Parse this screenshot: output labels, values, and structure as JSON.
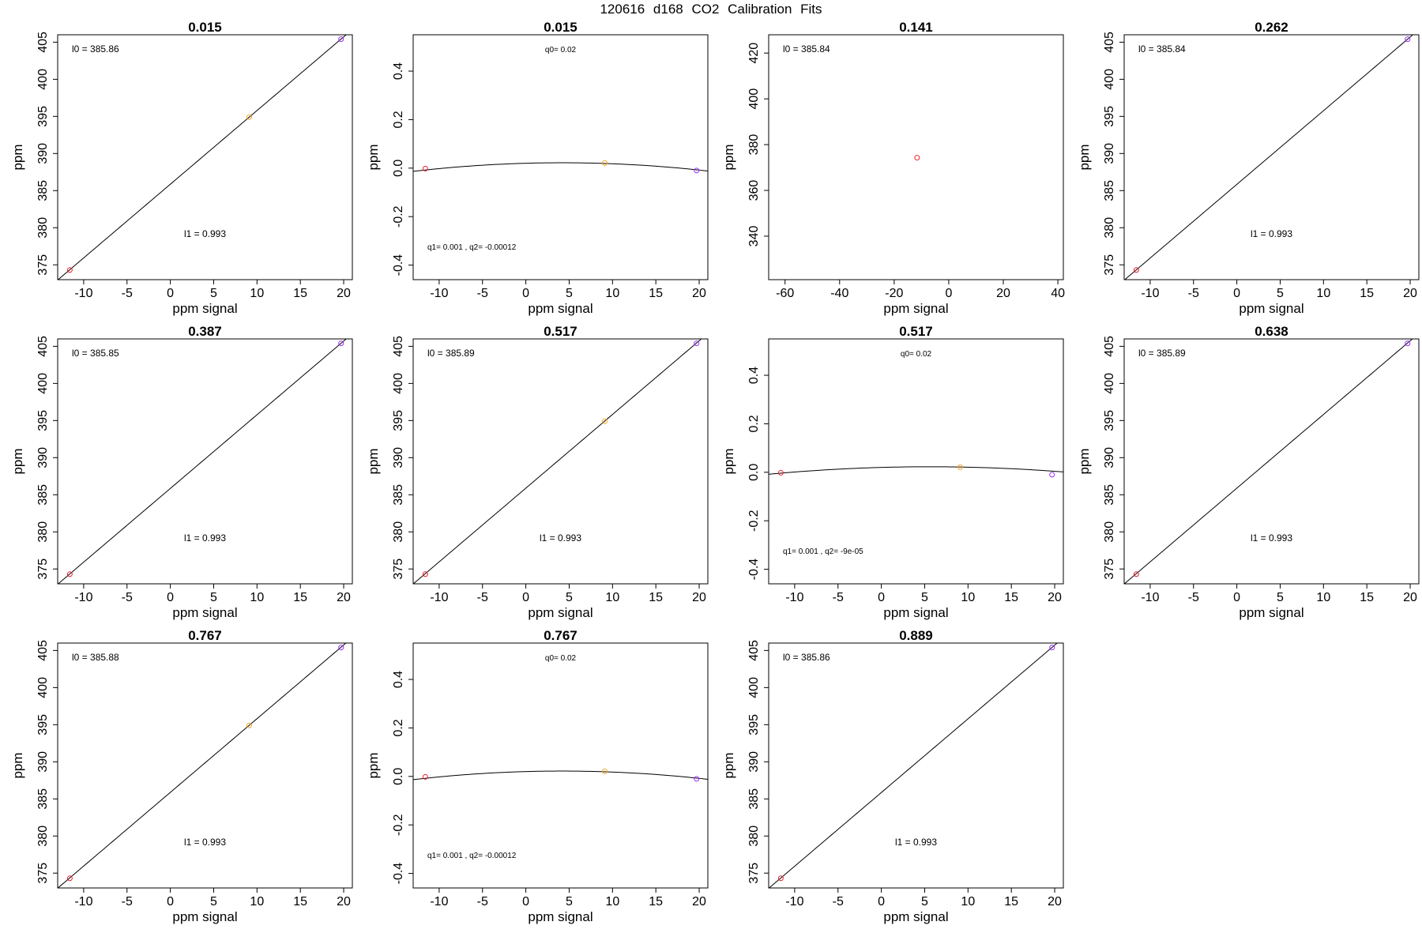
{
  "page": {
    "title": "120616   d168   CO2 Calibration Fits"
  },
  "chart_data": [
    {
      "type": "scatter",
      "title": "0.015",
      "xlabel": "ppm signal",
      "ylabel": "ppm",
      "xlim": [
        -13,
        21
      ],
      "ylim": [
        373,
        406
      ],
      "xticks": [
        -10,
        -5,
        0,
        5,
        10,
        15,
        20
      ],
      "yticks": [
        375,
        380,
        385,
        390,
        395,
        400,
        405
      ],
      "points": [
        {
          "x": -11.6,
          "y": 374.3,
          "color": "#e8202a"
        },
        {
          "x": 9.1,
          "y": 394.9,
          "color": "#f5a623"
        },
        {
          "x": 19.7,
          "y": 405.4,
          "color": "#9b30ff"
        }
      ],
      "fit": {
        "kind": "linear",
        "intercept": 385.86,
        "slope": 0.993
      },
      "annotations": [
        {
          "text": "l0 =  385.86",
          "pos": "top-left",
          "size": "normal"
        },
        {
          "text": "l1 =  0.993",
          "pos": "bottom-center",
          "size": "normal"
        }
      ]
    },
    {
      "type": "scatter",
      "title": "0.015",
      "xlabel": "ppm signal",
      "ylabel": "ppm",
      "xlim": [
        -13,
        21
      ],
      "ylim": [
        -0.46,
        0.55
      ],
      "xticks": [
        -10,
        -5,
        0,
        5,
        10,
        15,
        20
      ],
      "yticks": [
        -0.4,
        -0.2,
        0.0,
        0.2,
        0.4
      ],
      "yticklabels": [
        "-0.4",
        "-0.2",
        "0.0",
        "0.2",
        "0.4"
      ],
      "points": [
        {
          "x": -11.6,
          "y": -0.002,
          "color": "#e8202a"
        },
        {
          "x": 9.1,
          "y": 0.021,
          "color": "#f5a623"
        },
        {
          "x": 19.7,
          "y": -0.01,
          "color": "#9b30ff"
        }
      ],
      "fit": {
        "kind": "quadratic",
        "q0": 0.02,
        "q1": 0.001,
        "q2": -0.00012
      },
      "annotations": [
        {
          "text": "q0= 0.02",
          "pos": "top-center",
          "size": "small"
        },
        {
          "text": "q1= 0.001 , q2= -0.00012",
          "pos": "bottom-left",
          "size": "small"
        }
      ]
    },
    {
      "type": "scatter",
      "title": "0.141",
      "xlabel": "ppm signal",
      "ylabel": "ppm",
      "xlim": [
        -66,
        42
      ],
      "ylim": [
        321,
        428
      ],
      "xticks": [
        -60,
        -40,
        -20,
        0,
        20,
        40
      ],
      "yticks": [
        340,
        360,
        380,
        400,
        420
      ],
      "points": [
        {
          "x": -11.6,
          "y": 374.3,
          "color": "#e8202a"
        }
      ],
      "fit": null,
      "annotations": [
        {
          "text": "l0 =  385.84",
          "pos": "top-left",
          "size": "normal"
        }
      ]
    },
    {
      "type": "scatter",
      "title": "0.262",
      "xlabel": "ppm signal",
      "ylabel": "ppm",
      "xlim": [
        -13,
        21
      ],
      "ylim": [
        373,
        406
      ],
      "xticks": [
        -10,
        -5,
        0,
        5,
        10,
        15,
        20
      ],
      "yticks": [
        375,
        380,
        385,
        390,
        395,
        400,
        405
      ],
      "points": [
        {
          "x": -11.6,
          "y": 374.3,
          "color": "#e8202a"
        },
        {
          "x": 19.7,
          "y": 405.4,
          "color": "#9b30ff"
        }
      ],
      "fit": {
        "kind": "linear",
        "intercept": 385.84,
        "slope": 0.993
      },
      "annotations": [
        {
          "text": "l0 =  385.84",
          "pos": "top-left",
          "size": "normal"
        },
        {
          "text": "l1 =  0.993",
          "pos": "bottom-center",
          "size": "normal"
        }
      ]
    },
    {
      "type": "scatter",
      "title": "0.387",
      "xlabel": "ppm signal",
      "ylabel": "ppm",
      "xlim": [
        -13,
        21
      ],
      "ylim": [
        373,
        406
      ],
      "xticks": [
        -10,
        -5,
        0,
        5,
        10,
        15,
        20
      ],
      "yticks": [
        375,
        380,
        385,
        390,
        395,
        400,
        405
      ],
      "points": [
        {
          "x": -11.6,
          "y": 374.3,
          "color": "#e8202a"
        },
        {
          "x": 19.7,
          "y": 405.4,
          "color": "#9b30ff"
        }
      ],
      "fit": {
        "kind": "linear",
        "intercept": 385.85,
        "slope": 0.993
      },
      "annotations": [
        {
          "text": "l0 =  385.85",
          "pos": "top-left",
          "size": "normal"
        },
        {
          "text": "l1 =  0.993",
          "pos": "bottom-center",
          "size": "normal"
        }
      ]
    },
    {
      "type": "scatter",
      "title": "0.517",
      "xlabel": "ppm signal",
      "ylabel": "ppm",
      "xlim": [
        -13,
        21
      ],
      "ylim": [
        373,
        406
      ],
      "xticks": [
        -10,
        -5,
        0,
        5,
        10,
        15,
        20
      ],
      "yticks": [
        375,
        380,
        385,
        390,
        395,
        400,
        405
      ],
      "points": [
        {
          "x": -11.6,
          "y": 374.3,
          "color": "#e8202a"
        },
        {
          "x": 9.1,
          "y": 394.9,
          "color": "#f5a623"
        },
        {
          "x": 19.7,
          "y": 405.4,
          "color": "#9b30ff"
        }
      ],
      "fit": {
        "kind": "linear",
        "intercept": 385.89,
        "slope": 0.993
      },
      "annotations": [
        {
          "text": "l0 =  385.89",
          "pos": "top-left",
          "size": "normal"
        },
        {
          "text": "l1 =  0.993",
          "pos": "bottom-center",
          "size": "normal"
        }
      ]
    },
    {
      "type": "scatter",
      "title": "0.517",
      "xlabel": "ppm signal",
      "ylabel": "ppm",
      "xlim": [
        -13,
        21
      ],
      "ylim": [
        -0.46,
        0.55
      ],
      "xticks": [
        -10,
        -5,
        0,
        5,
        10,
        15,
        20
      ],
      "yticks": [
        -0.4,
        -0.2,
        0.0,
        0.2,
        0.4
      ],
      "yticklabels": [
        "-0.4",
        "-0.2",
        "0.0",
        "0.2",
        "0.4"
      ],
      "points": [
        {
          "x": -11.6,
          "y": -0.002,
          "color": "#e8202a"
        },
        {
          "x": 9.1,
          "y": 0.021,
          "color": "#f5a623"
        },
        {
          "x": 19.7,
          "y": -0.01,
          "color": "#9b30ff"
        }
      ],
      "fit": {
        "kind": "quadratic",
        "q0": 0.02,
        "q1": 0.001,
        "q2": -9e-05
      },
      "annotations": [
        {
          "text": "q0= 0.02",
          "pos": "top-center",
          "size": "small"
        },
        {
          "text": "q1= 0.001 , q2= -9e-05",
          "pos": "bottom-left",
          "size": "small"
        }
      ]
    },
    {
      "type": "scatter",
      "title": "0.638",
      "xlabel": "ppm signal",
      "ylabel": "ppm",
      "xlim": [
        -13,
        21
      ],
      "ylim": [
        373,
        406
      ],
      "xticks": [
        -10,
        -5,
        0,
        5,
        10,
        15,
        20
      ],
      "yticks": [
        375,
        380,
        385,
        390,
        395,
        400,
        405
      ],
      "points": [
        {
          "x": -11.6,
          "y": 374.3,
          "color": "#e8202a"
        },
        {
          "x": 19.7,
          "y": 405.4,
          "color": "#9b30ff"
        }
      ],
      "fit": {
        "kind": "linear",
        "intercept": 385.89,
        "slope": 0.993
      },
      "annotations": [
        {
          "text": "l0 =  385.89",
          "pos": "top-left",
          "size": "normal"
        },
        {
          "text": "l1 =  0.993",
          "pos": "bottom-center",
          "size": "normal"
        }
      ]
    },
    {
      "type": "scatter",
      "title": "0.767",
      "xlabel": "ppm signal",
      "ylabel": "ppm",
      "xlim": [
        -13,
        21
      ],
      "ylim": [
        373,
        406
      ],
      "xticks": [
        -10,
        -5,
        0,
        5,
        10,
        15,
        20
      ],
      "yticks": [
        375,
        380,
        385,
        390,
        395,
        400,
        405
      ],
      "points": [
        {
          "x": -11.6,
          "y": 374.3,
          "color": "#e8202a"
        },
        {
          "x": 9.1,
          "y": 394.9,
          "color": "#f5a623"
        },
        {
          "x": 19.7,
          "y": 405.4,
          "color": "#9b30ff"
        }
      ],
      "fit": {
        "kind": "linear",
        "intercept": 385.88,
        "slope": 0.993
      },
      "annotations": [
        {
          "text": "l0 =  385.88",
          "pos": "top-left",
          "size": "normal"
        },
        {
          "text": "l1 =  0.993",
          "pos": "bottom-center",
          "size": "normal"
        }
      ]
    },
    {
      "type": "scatter",
      "title": "0.767",
      "xlabel": "ppm signal",
      "ylabel": "ppm",
      "xlim": [
        -13,
        21
      ],
      "ylim": [
        -0.46,
        0.55
      ],
      "xticks": [
        -10,
        -5,
        0,
        5,
        10,
        15,
        20
      ],
      "yticks": [
        -0.4,
        -0.2,
        0.0,
        0.2,
        0.4
      ],
      "yticklabels": [
        "-0.4",
        "-0.2",
        "0.0",
        "0.2",
        "0.4"
      ],
      "points": [
        {
          "x": -11.6,
          "y": -0.002,
          "color": "#e8202a"
        },
        {
          "x": 9.1,
          "y": 0.021,
          "color": "#f5a623"
        },
        {
          "x": 19.7,
          "y": -0.01,
          "color": "#9b30ff"
        }
      ],
      "fit": {
        "kind": "quadratic",
        "q0": 0.02,
        "q1": 0.001,
        "q2": -0.00012
      },
      "annotations": [
        {
          "text": "q0= 0.02",
          "pos": "top-center",
          "size": "small"
        },
        {
          "text": "q1= 0.001 , q2= -0.00012",
          "pos": "bottom-left",
          "size": "small"
        }
      ]
    },
    {
      "type": "scatter",
      "title": "0.889",
      "xlabel": "ppm signal",
      "ylabel": "ppm",
      "xlim": [
        -13,
        21
      ],
      "ylim": [
        373,
        406
      ],
      "xticks": [
        -10,
        -5,
        0,
        5,
        10,
        15,
        20
      ],
      "yticks": [
        375,
        380,
        385,
        390,
        395,
        400,
        405
      ],
      "points": [
        {
          "x": -11.6,
          "y": 374.3,
          "color": "#e8202a"
        },
        {
          "x": 19.7,
          "y": 405.4,
          "color": "#9b30ff"
        }
      ],
      "fit": {
        "kind": "linear",
        "intercept": 385.86,
        "slope": 0.993
      },
      "annotations": [
        {
          "text": "l0 =  385.86",
          "pos": "top-left",
          "size": "normal"
        },
        {
          "text": "l1 =  0.993",
          "pos": "bottom-center",
          "size": "normal"
        }
      ]
    }
  ]
}
